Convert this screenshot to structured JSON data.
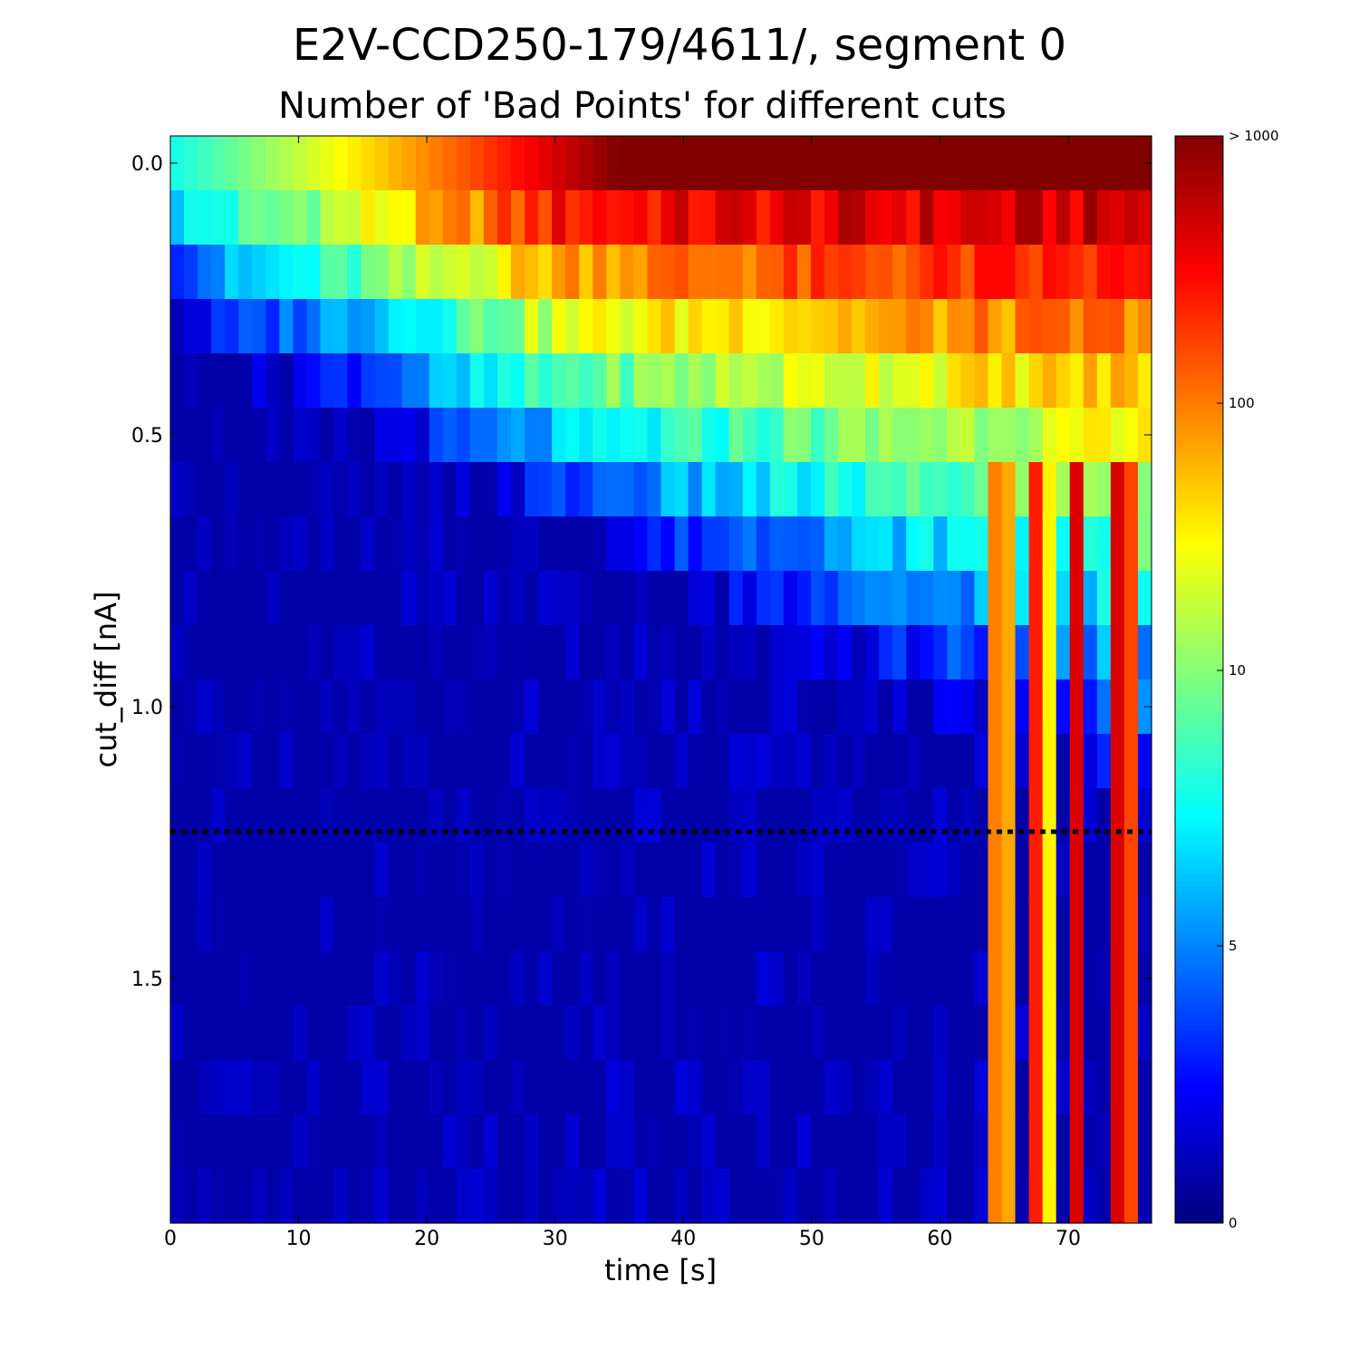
{
  "chart_data": {
    "type": "heatmap",
    "title": "E2V-CCD250-179/4611/, segment 0",
    "subtitle": "Number of 'Bad Points' for different cuts",
    "xlabel": "time [s]",
    "ylabel": "cut_diff [nA]",
    "xlim": [
      0,
      76.5
    ],
    "ylim": [
      1.95,
      -0.05
    ],
    "x_ticks": [
      0,
      10,
      20,
      30,
      40,
      50,
      60,
      70
    ],
    "y_ticks": [
      0.0,
      0.5,
      1.0,
      1.5
    ],
    "x_tick_labels": [
      "0",
      "10",
      "20",
      "30",
      "40",
      "50",
      "60",
      "70"
    ],
    "y_tick_labels": [
      "0.0",
      "0.5",
      "1.0",
      "1.5"
    ],
    "threshold_line": {
      "cut_diff": 1.23,
      "style": "dotted",
      "color": "#000000"
    },
    "colorbar": {
      "scale": "log-like",
      "ticks": [
        0,
        5,
        10,
        100,
        1000
      ],
      "tick_labels": [
        "0",
        "5",
        "10",
        "100",
        "> 1000"
      ]
    },
    "cell_count": {
      "time_bins": 72,
      "cut_bins": 20
    },
    "column_profiles": {
      "description_free": true,
      "top_row_level_start": 0.4,
      "top_row_level_end": 1.0,
      "spike_columns_time": [
        64,
        65,
        67,
        68,
        70,
        73,
        74
      ]
    }
  },
  "colors": {
    "colormap": [
      "#00007f",
      "#0000ff",
      "#007fff",
      "#00ffff",
      "#7fff7f",
      "#ffff00",
      "#ff7f00",
      "#ff0000",
      "#7f0000"
    ],
    "threshold_line": "#000000"
  }
}
